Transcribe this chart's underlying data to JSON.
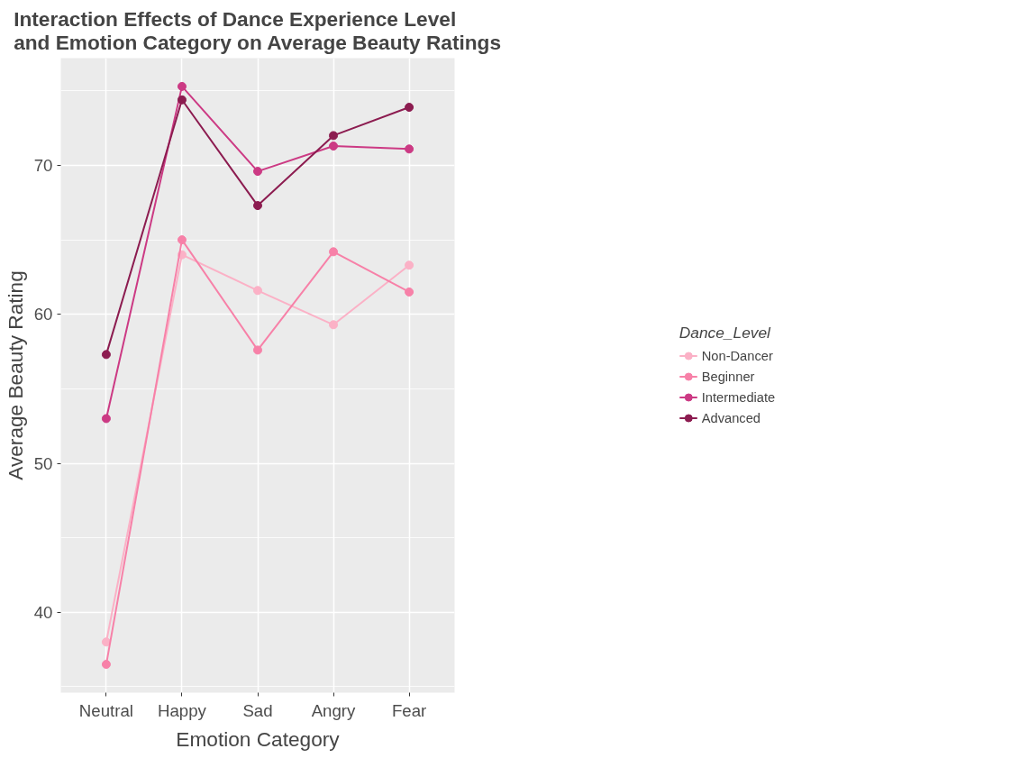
{
  "chart_data": {
    "type": "line",
    "title": "Interaction Effects of Dance Experience Level\nand Emotion Category on Average Beauty Ratings",
    "xlabel": "Emotion Category",
    "ylabel": "Average Beauty Rating",
    "legend_title": "Dance_Level",
    "categories": [
      "Neutral",
      "Happy",
      "Sad",
      "Angry",
      "Fear"
    ],
    "series": [
      {
        "name": "Non-Dancer",
        "color": "#fbb1c6",
        "values": [
          38.0,
          64.0,
          61.6,
          59.3,
          63.3
        ]
      },
      {
        "name": "Beginner",
        "color": "#f781a8",
        "values": [
          36.5,
          65.0,
          57.6,
          64.2,
          61.5
        ]
      },
      {
        "name": "Intermediate",
        "color": "#cc3a84",
        "values": [
          53.0,
          75.3,
          69.6,
          71.3,
          71.1
        ]
      },
      {
        "name": "Advanced",
        "color": "#8c1c50",
        "values": [
          57.3,
          74.4,
          67.3,
          72.0,
          73.9
        ]
      }
    ],
    "ylim": [
      34.6,
      77.2
    ],
    "yticks": [
      40,
      50,
      60,
      70
    ],
    "grid": true,
    "legend": "right",
    "marker": "circle",
    "line_style": "solid"
  }
}
